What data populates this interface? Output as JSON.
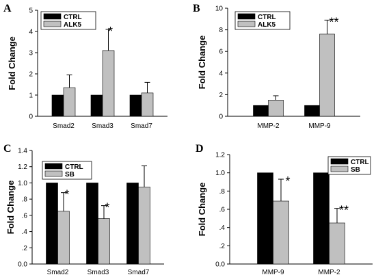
{
  "colors": {
    "ctrl": "#000000",
    "treat": "#c0c0c0"
  },
  "chart_data": [
    {
      "panel": "A",
      "type": "bar",
      "ylabel": "Fold Change",
      "ylim": [
        0,
        5
      ],
      "yticks": [
        "0",
        "1",
        "2",
        "3",
        "4",
        "5"
      ],
      "categories": [
        "Smad2",
        "Smad3",
        "Smad7"
      ],
      "series": [
        {
          "name": "CTRL",
          "values": [
            1.0,
            1.0,
            1.0
          ]
        },
        {
          "name": "ALK5",
          "values": [
            1.35,
            3.1,
            1.1
          ],
          "errors": [
            0.6,
            1.0,
            0.5
          ]
        }
      ],
      "annotations": [
        "",
        "*",
        ""
      ],
      "legend_position": "top-left"
    },
    {
      "panel": "B",
      "type": "bar",
      "ylabel": "Fold Change",
      "ylim": [
        0,
        10
      ],
      "yticks": [
        "0",
        "2",
        "4",
        "6",
        "8",
        "10"
      ],
      "categories": [
        "MMP-2",
        "MMP-9"
      ],
      "series": [
        {
          "name": "CTRL",
          "values": [
            1.0,
            1.0
          ]
        },
        {
          "name": "ALK5",
          "values": [
            1.5,
            7.6
          ],
          "errors": [
            0.4,
            1.3
          ]
        }
      ],
      "annotations": [
        "",
        "**"
      ],
      "legend_position": "top-left"
    },
    {
      "panel": "C",
      "type": "bar",
      "ylabel": "Fold Change",
      "ylim": [
        0,
        1.4
      ],
      "yticks": [
        "0.0",
        ".2",
        ".4",
        ".6",
        ".8",
        "1.0",
        "1.2",
        "1.4"
      ],
      "categories": [
        "Smad2",
        "Smad3",
        "Smad7"
      ],
      "series": [
        {
          "name": "CTRL",
          "values": [
            1.0,
            1.0,
            1.0
          ]
        },
        {
          "name": "SB",
          "values": [
            0.65,
            0.56,
            0.95
          ],
          "errors": [
            0.23,
            0.16,
            0.26
          ]
        }
      ],
      "annotations": [
        "*",
        "*",
        ""
      ],
      "legend_position": "top-left"
    },
    {
      "panel": "D",
      "type": "bar",
      "ylabel": "Fold Change",
      "ylim": [
        0,
        1.2
      ],
      "yticks": [
        "0.0",
        ".2",
        ".4",
        ".6",
        ".8",
        "1.0",
        "1.2"
      ],
      "categories": [
        "MMP-9",
        "MMP-2"
      ],
      "series": [
        {
          "name": "CTRL",
          "values": [
            1.0,
            1.0
          ]
        },
        {
          "name": "SB",
          "values": [
            0.69,
            0.45
          ],
          "errors": [
            0.24,
            0.16
          ]
        }
      ],
      "annotations": [
        "*",
        "**"
      ],
      "legend_position": "top-right"
    }
  ]
}
